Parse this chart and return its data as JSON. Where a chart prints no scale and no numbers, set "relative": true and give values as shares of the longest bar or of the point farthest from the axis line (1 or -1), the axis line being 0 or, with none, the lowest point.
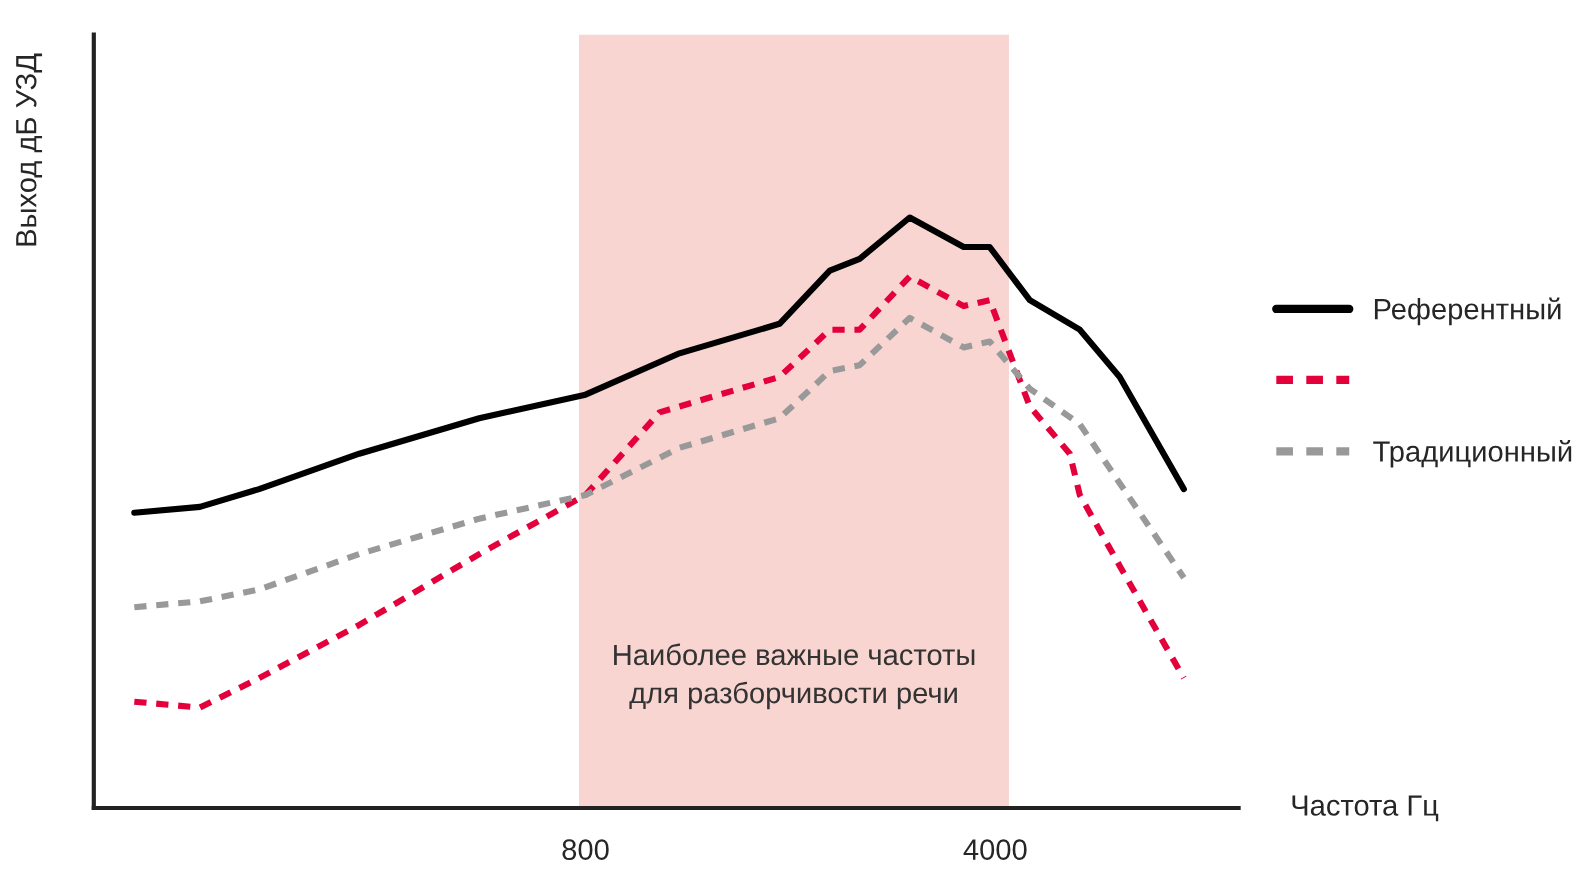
{
  "chart_data": {
    "type": "line",
    "relative": true,
    "ylabel": "Выход дБ УЗД",
    "xlabel": "Частота Гц",
    "log": "x",
    "xlim": [
      116,
      10400
    ],
    "xticks": [
      800,
      4000
    ],
    "grid": false,
    "legend": "right",
    "bands": [
      {
        "axis": "x",
        "from": 780,
        "to": 4220,
        "label": "Наиболее важные частоты\nдля разборчивости речи",
        "color": "#f8d5d0"
      }
    ],
    "series": [
      {
        "name": "Референтный",
        "color": "#000000",
        "line_style": "solid",
        "x": [
          136,
          176,
          222,
          329,
          527,
          800,
          1157,
          1714,
          2088,
          2348,
          2858,
          3533,
          3913,
          4580,
          5574,
          6520,
          8387
        ],
        "values": [
          0.5,
          0.51,
          0.54,
          0.6,
          0.66,
          0.7,
          0.77,
          0.82,
          0.91,
          0.93,
          1.0,
          0.95,
          0.95,
          0.86,
          0.81,
          0.73,
          0.54
        ]
      },
      {
        "color": "#e4003a",
        "line_style": "dotted",
        "x": [
          136,
          176,
          222,
          329,
          527,
          800,
          1070,
          1157,
          1714,
          2088,
          2348,
          2858,
          3533,
          3913,
          4233,
          4580,
          5359,
          5574,
          6520,
          8387
        ],
        "values": [
          0.18,
          0.17,
          0.22,
          0.31,
          0.43,
          0.53,
          0.67,
          0.68,
          0.73,
          0.81,
          0.81,
          0.9,
          0.85,
          0.86,
          0.77,
          0.68,
          0.6,
          0.53,
          0.41,
          0.22
        ]
      },
      {
        "name": "Традиционный",
        "color": "#999999",
        "line_style": "dotted",
        "x": [
          136,
          176,
          222,
          329,
          527,
          800,
          1157,
          1714,
          2088,
          2348,
          2858,
          3533,
          3913,
          4580,
          5574,
          6520,
          8387
        ],
        "values": [
          0.34,
          0.35,
          0.37,
          0.43,
          0.49,
          0.53,
          0.61,
          0.66,
          0.74,
          0.75,
          0.83,
          0.78,
          0.79,
          0.71,
          0.65,
          0.55,
          0.39
        ]
      }
    ]
  }
}
